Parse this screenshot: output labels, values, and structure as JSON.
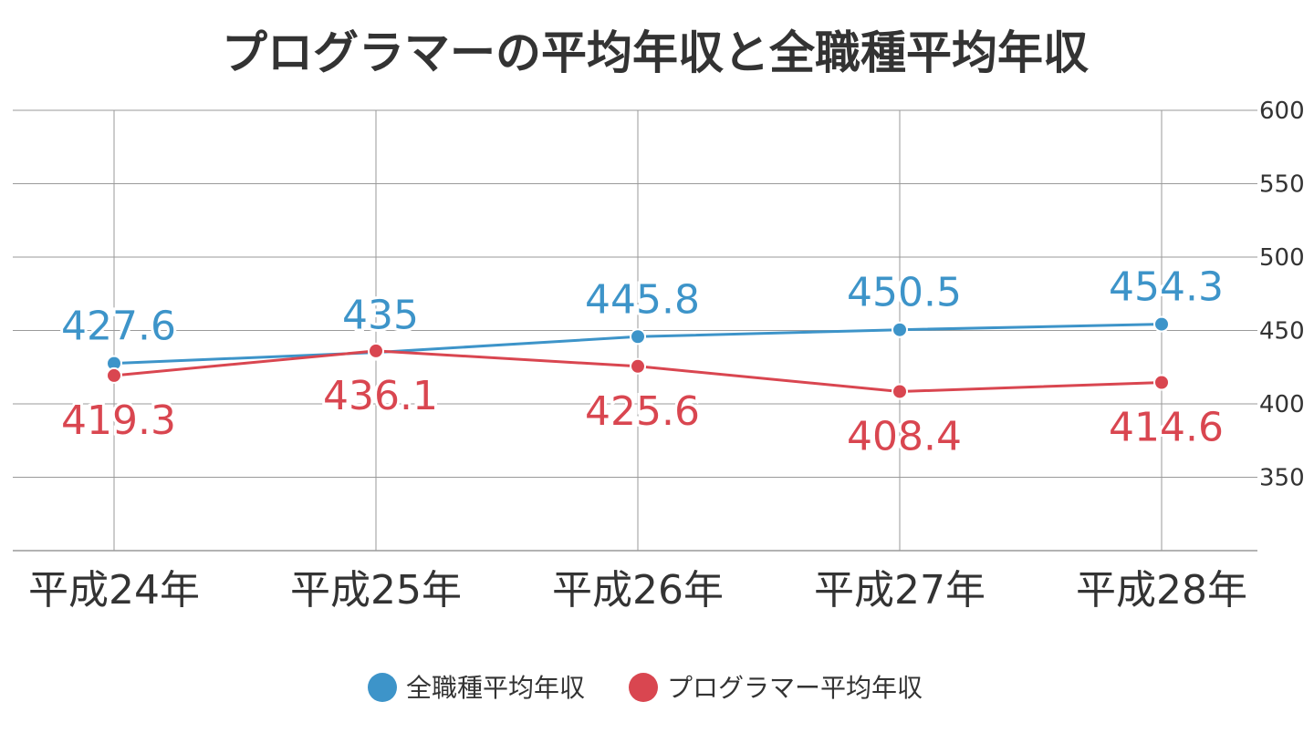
{
  "chart_data": {
    "type": "line",
    "title": "プログラマーの平均年収と全職種平均年収",
    "xlabel": "",
    "ylabel": "",
    "categories": [
      "平成24年",
      "平成25年",
      "平成26年",
      "平成27年",
      "平成28年"
    ],
    "ylim": [
      300,
      600
    ],
    "yticks": [
      350,
      400,
      450,
      500,
      550,
      600
    ],
    "y_axis_position": "right",
    "grid": true,
    "legend_position": "bottom",
    "series": [
      {
        "name": "全職種平均年収",
        "color": "#3d94c9",
        "values": [
          427.6,
          435,
          445.8,
          450.5,
          454.3
        ],
        "labels": [
          "427.6",
          "435",
          "445.8",
          "450.5",
          "454.3"
        ],
        "label_position": "above"
      },
      {
        "name": "プログラマー平均年収",
        "color": "#d94650",
        "values": [
          419.3,
          436.1,
          425.6,
          408.4,
          414.6
        ],
        "labels": [
          "419.3",
          "436.1",
          "425.6",
          "408.4",
          "414.6"
        ],
        "label_position": "below"
      }
    ]
  }
}
